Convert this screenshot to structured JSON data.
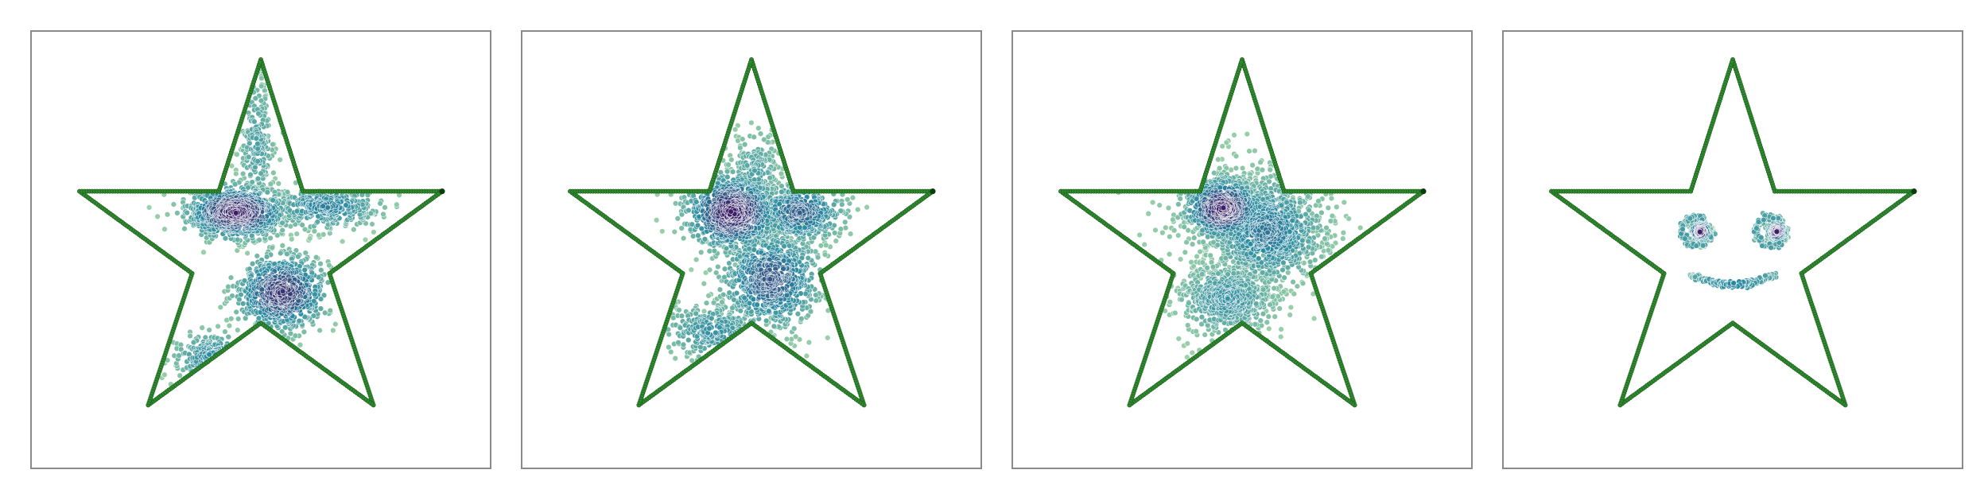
{
  "chart_data": [
    {
      "type": "scatter",
      "outline": "star",
      "grid": false,
      "axes_visible": false,
      "colors": {
        "outline": "#2e8b2e",
        "outline_edge": "#1f5e1f",
        "density_low": "#9fd3a8",
        "density_mid": "#2a8aa2",
        "density_high": "#3b1f66"
      },
      "star_vertices": [
        [
          0,
          1.0
        ],
        [
          0.22,
          0.31
        ],
        [
          0.95,
          0.31
        ],
        [
          0.36,
          -0.12
        ],
        [
          0.59,
          -0.81
        ],
        [
          0,
          -0.38
        ],
        [
          -0.59,
          -0.81
        ],
        [
          -0.36,
          -0.12
        ],
        [
          -0.95,
          0.31
        ],
        [
          -0.22,
          0.31
        ]
      ],
      "clusters": [
        {
          "cx": -0.13,
          "cy": 0.2,
          "sx": 0.13,
          "sy": 0.07,
          "count": 900,
          "density": 1.0
        },
        {
          "cx": 0.11,
          "cy": -0.22,
          "sx": 0.12,
          "sy": 0.1,
          "count": 700,
          "density": 0.9
        },
        {
          "cx": 0.34,
          "cy": 0.23,
          "sx": 0.15,
          "sy": 0.06,
          "count": 400,
          "density": 0.55
        },
        {
          "cx": -0.25,
          "cy": -0.56,
          "sx": 0.11,
          "sy": 0.07,
          "count": 300,
          "density": 0.5
        },
        {
          "cx": -0.02,
          "cy": 0.55,
          "sx": 0.05,
          "sy": 0.2,
          "count": 250,
          "density": 0.35
        }
      ]
    },
    {
      "type": "scatter",
      "outline": "star",
      "grid": false,
      "axes_visible": false,
      "colors": {
        "outline": "#2e8b2e",
        "outline_edge": "#1f5e1f",
        "density_low": "#9fd3a8",
        "density_mid": "#2a8aa2",
        "density_high": "#3b1f66"
      },
      "star_vertices": [
        [
          0,
          1.0
        ],
        [
          0.22,
          0.31
        ],
        [
          0.95,
          0.31
        ],
        [
          0.36,
          -0.12
        ],
        [
          0.59,
          -0.81
        ],
        [
          0,
          -0.38
        ],
        [
          -0.59,
          -0.81
        ],
        [
          -0.36,
          -0.12
        ],
        [
          -0.95,
          0.31
        ],
        [
          -0.22,
          0.31
        ]
      ],
      "clusters": [
        {
          "cx": -0.1,
          "cy": 0.2,
          "sx": 0.12,
          "sy": 0.1,
          "count": 900,
          "density": 1.0
        },
        {
          "cx": 0.1,
          "cy": -0.15,
          "sx": 0.13,
          "sy": 0.13,
          "count": 800,
          "density": 0.75
        },
        {
          "cx": 0.25,
          "cy": 0.2,
          "sx": 0.12,
          "sy": 0.08,
          "count": 450,
          "density": 0.7
        },
        {
          "cx": -0.2,
          "cy": -0.42,
          "sx": 0.14,
          "sy": 0.08,
          "count": 300,
          "density": 0.45
        },
        {
          "cx": 0.02,
          "cy": 0.4,
          "sx": 0.07,
          "sy": 0.12,
          "count": 200,
          "density": 0.35
        }
      ]
    },
    {
      "type": "scatter",
      "outline": "star",
      "grid": false,
      "axes_visible": false,
      "colors": {
        "outline": "#2e8b2e",
        "outline_edge": "#1f5e1f",
        "density_low": "#9fd3a8",
        "density_mid": "#2a8aa2",
        "density_high": "#3b1f66"
      },
      "star_vertices": [
        [
          0,
          1.0
        ],
        [
          0.22,
          0.31
        ],
        [
          0.95,
          0.31
        ],
        [
          0.36,
          -0.12
        ],
        [
          0.59,
          -0.81
        ],
        [
          0,
          -0.38
        ],
        [
          -0.59,
          -0.81
        ],
        [
          -0.36,
          -0.12
        ],
        [
          -0.95,
          0.31
        ],
        [
          -0.22,
          0.31
        ]
      ],
      "clusters": [
        {
          "cx": -0.1,
          "cy": 0.22,
          "sx": 0.1,
          "sy": 0.08,
          "count": 700,
          "density": 1.0
        },
        {
          "cx": 0.13,
          "cy": 0.1,
          "sx": 0.15,
          "sy": 0.14,
          "count": 900,
          "density": 0.6
        },
        {
          "cx": -0.08,
          "cy": -0.25,
          "sx": 0.13,
          "sy": 0.1,
          "count": 600,
          "density": 0.45
        },
        {
          "cx": 0.05,
          "cy": 0.15,
          "sx": 0.25,
          "sy": 0.2,
          "count": 400,
          "density": 0.2
        }
      ]
    },
    {
      "type": "scatter",
      "outline": "star",
      "grid": false,
      "axes_visible": false,
      "colors": {
        "outline": "#2e8b2e",
        "outline_edge": "#1f5e1f",
        "density_low": "#9fd3a8",
        "density_mid": "#2a8aa2",
        "density_high": "#3b1f66"
      },
      "star_vertices": [
        [
          0,
          1.0
        ],
        [
          0.22,
          0.31
        ],
        [
          0.95,
          0.31
        ],
        [
          0.36,
          -0.12
        ],
        [
          0.59,
          -0.81
        ],
        [
          0,
          -0.38
        ],
        [
          -0.59,
          -0.81
        ],
        [
          -0.36,
          -0.12
        ],
        [
          -0.95,
          0.31
        ],
        [
          -0.22,
          0.31
        ]
      ],
      "clusters": [
        {
          "cx": -0.17,
          "cy": 0.1,
          "sx": 0.025,
          "sy": 0.025,
          "count": 200,
          "density": 1.0
        },
        {
          "cx": 0.23,
          "cy": 0.1,
          "sx": 0.025,
          "sy": 0.025,
          "count": 200,
          "density": 1.0
        }
      ],
      "rings": [
        {
          "cx": -0.19,
          "cy": 0.1,
          "r": 0.075,
          "count": 160,
          "density": 0.35
        },
        {
          "cx": 0.2,
          "cy": 0.1,
          "r": 0.075,
          "count": 160,
          "density": 0.35
        }
      ],
      "smile": {
        "cx": -0.0,
        "cy": -0.13,
        "width": 0.22,
        "depth": 0.08,
        "count": 220,
        "density": 0.4
      }
    }
  ]
}
